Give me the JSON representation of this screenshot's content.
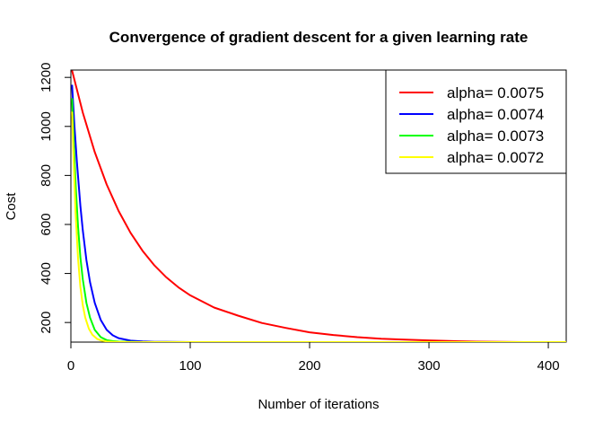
{
  "chart_data": {
    "type": "line",
    "title": "Convergence of gradient descent for a given learning rate",
    "xlabel": "Number of iterations",
    "ylabel": "Cost",
    "xlim": [
      0,
      415
    ],
    "ylim": [
      120,
      1230
    ],
    "xticks": [
      0,
      100,
      200,
      300,
      400
    ],
    "yticks": [
      200,
      400,
      600,
      800,
      1000,
      1200
    ],
    "grid": false,
    "legend_position": "top-right",
    "series": [
      {
        "name": "alpha= 0.0075",
        "color": "#ff0000",
        "x": [
          1,
          10,
          20,
          30,
          40,
          50,
          60,
          70,
          80,
          90,
          100,
          120,
          140,
          160,
          180,
          200,
          220,
          240,
          260,
          280,
          300,
          320,
          340,
          360,
          380,
          400,
          415
        ],
        "values": [
          1228,
          1056,
          895,
          763,
          655,
          566,
          493,
          433,
          384,
          344,
          311,
          261,
          228,
          198,
          178,
          160,
          149,
          140,
          134,
          130,
          127,
          124,
          122,
          121,
          120,
          120,
          120
        ]
      },
      {
        "name": "alpha= 0.0074",
        "color": "#0000ff",
        "x": [
          1,
          3,
          5,
          8,
          10,
          13,
          16,
          20,
          25,
          30,
          35,
          40,
          50,
          60,
          70,
          80,
          100,
          150,
          200,
          300,
          415
        ],
        "values": [
          1170,
          1000,
          855,
          675,
          575,
          455,
          365,
          280,
          210,
          170,
          148,
          136,
          126,
          123,
          121,
          121,
          120,
          120,
          120,
          120,
          120
        ]
      },
      {
        "name": "alpha= 0.0073",
        "color": "#00ff00",
        "x": [
          1,
          2,
          4,
          6,
          8,
          10,
          13,
          16,
          20,
          25,
          30,
          35,
          40,
          50,
          60,
          80,
          100,
          200,
          300,
          415
        ],
        "values": [
          1115,
          980,
          760,
          590,
          465,
          375,
          280,
          220,
          170,
          140,
          128,
          124,
          122,
          121,
          120,
          120,
          120,
          120,
          120,
          120
        ]
      },
      {
        "name": "alpha= 0.0072",
        "color": "#ffff00",
        "x": [
          1,
          2,
          4,
          6,
          8,
          10,
          12,
          15,
          18,
          22,
          26,
          30,
          35,
          40,
          50,
          60,
          80,
          100,
          200,
          300,
          415
        ],
        "values": [
          1060,
          900,
          640,
          460,
          345,
          270,
          220,
          175,
          150,
          133,
          126,
          123,
          121,
          120,
          120,
          120,
          120,
          120,
          120,
          120,
          120
        ]
      }
    ]
  }
}
